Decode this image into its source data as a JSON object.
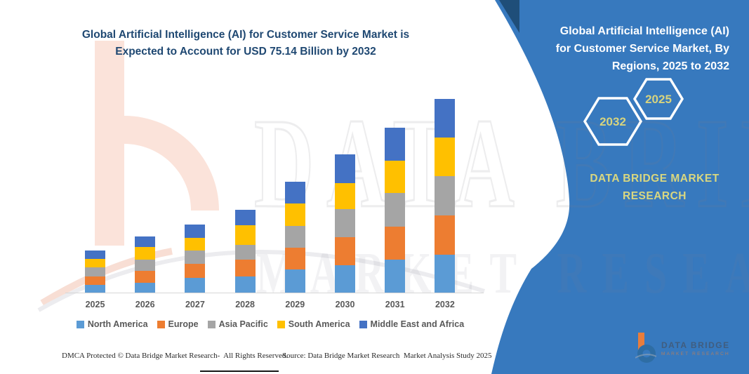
{
  "left": {
    "title_line1": "Global Artificial Intelligence (AI) for Customer Service Market is",
    "title_line2": "Expected to Account for USD 75.14 Billion by 2032"
  },
  "chart_data": {
    "type": "bar",
    "stacked": true,
    "title": "Global Artificial Intelligence (AI) for Customer Service Market is Expected to Account for USD 75.14 Billion by 2032",
    "unit": "USD Billion",
    "categories": [
      "2025",
      "2026",
      "2027",
      "2028",
      "2029",
      "2030",
      "2031",
      "2032"
    ],
    "series": [
      {
        "name": "North America",
        "color": "#5B9BD5",
        "values": [
          3.0,
          3.9,
          5.7,
          6.4,
          8.9,
          10.5,
          12.7,
          14.6
        ]
      },
      {
        "name": "Europe",
        "color": "#ED7D31",
        "values": [
          3.3,
          4.5,
          5.6,
          6.4,
          8.6,
          11.0,
          12.9,
          15.4
        ]
      },
      {
        "name": "Asia Pacific",
        "color": "#A5A5A5",
        "values": [
          3.4,
          4.4,
          5.0,
          5.7,
          8.4,
          10.9,
          13.1,
          15.1
        ]
      },
      {
        "name": "South America",
        "color": "#FFC000",
        "values": [
          3.4,
          4.8,
          5.0,
          7.6,
          8.7,
          10.2,
          12.5,
          15.2
        ]
      },
      {
        "name": "Middle East and Africa",
        "color": "#4472C4",
        "values": [
          3.3,
          4.1,
          5.2,
          6.1,
          8.3,
          11.0,
          12.9,
          14.8
        ]
      }
    ],
    "totals": [
      16.4,
      21.7,
      26.5,
      32.2,
      42.9,
      53.6,
      64.1,
      75.14
    ],
    "ylim": [
      0,
      80
    ],
    "grid": false,
    "y_axis_visible": false,
    "legend_position": "bottom"
  },
  "right_panel": {
    "background_color": "#3779BE",
    "title_line1": "Global Artificial Intelligence (AI)",
    "title_line2": "for Customer Service Market, By",
    "title_line3": "Regions, 2025 to 2032",
    "hexagon_back": "2032",
    "hexagon_front": "2025",
    "brand_line1": "DATA BRIDGE MARKET",
    "brand_line2": "RESEARCH",
    "accent_color": "#d9d780"
  },
  "logo": {
    "brand": "DATA BRIDGE",
    "sub": "MARKET RESEARCH"
  },
  "watermark": {
    "line1": "DATA BRIDGE",
    "line2": "MARKET RESEARCH"
  },
  "footer": {
    "left": "DMCA Protected © Data Bridge Market Research-  All Rights Reserved.",
    "right": "Source: Data Bridge Market Research  Market Analysis Study 2025"
  }
}
